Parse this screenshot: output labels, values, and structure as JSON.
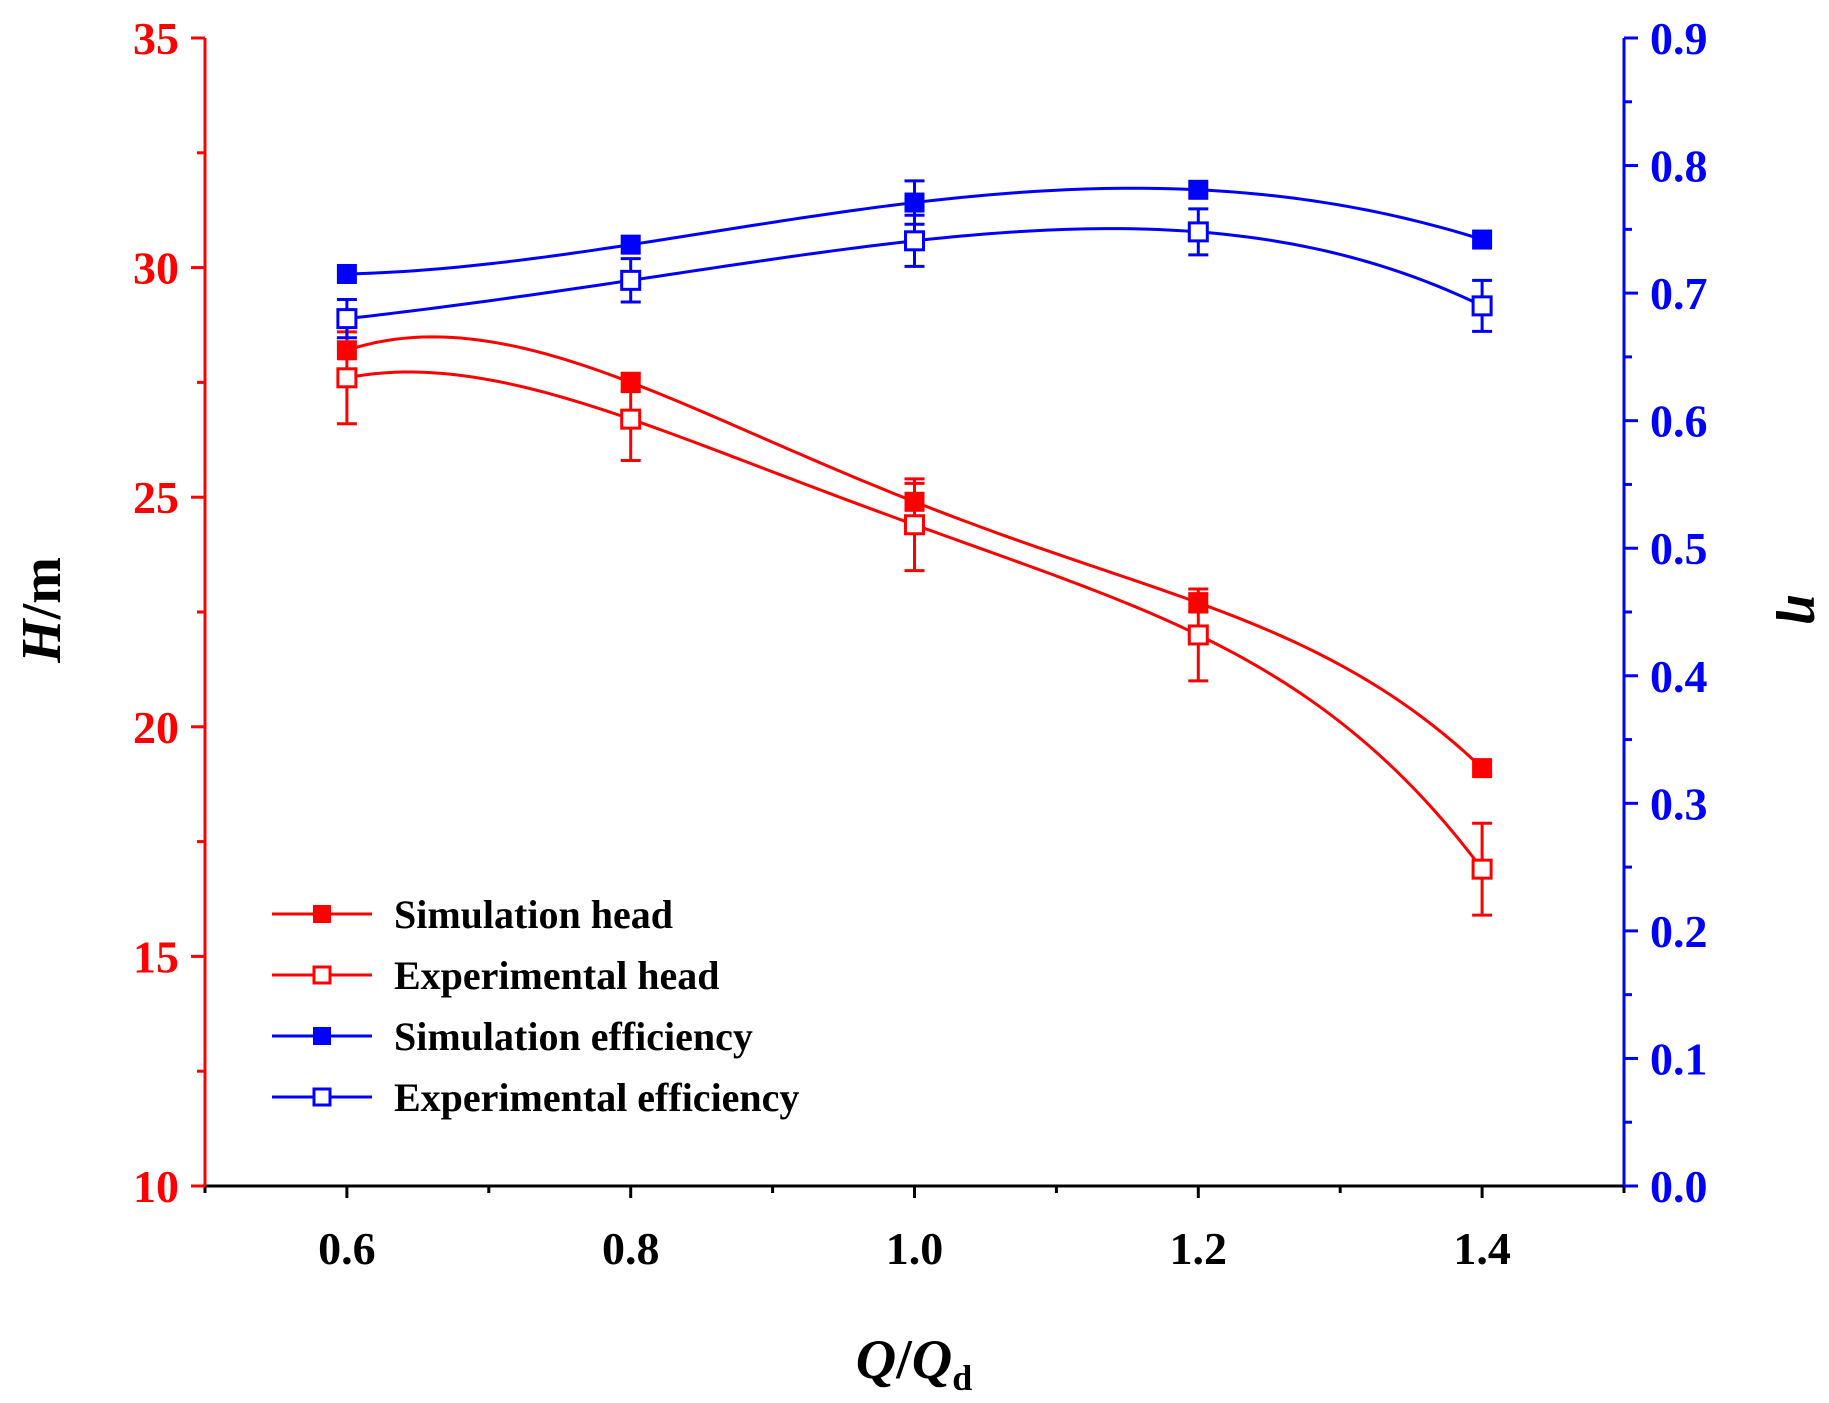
{
  "chart_data": {
    "type": "line",
    "x": [
      0.6,
      0.8,
      1.0,
      1.2,
      1.4
    ],
    "xlabel": {
      "main": "Q",
      "sep": "/",
      "main2": "Q",
      "sub": "d"
    },
    "xlim": [
      0.5,
      1.5
    ],
    "x_ticks": [
      "0.6",
      "0.8",
      "1.0",
      "1.2",
      "1.4"
    ],
    "ylabel_left": {
      "main": "H",
      "unit": "/m"
    },
    "ylim_left": [
      10,
      35
    ],
    "y_ticks_left": [
      "10",
      "15",
      "20",
      "25",
      "30",
      "35"
    ],
    "ylabel_right": "η",
    "ylim_right": [
      0.0,
      0.9
    ],
    "y_ticks_right": [
      "0.0",
      "0.1",
      "0.2",
      "0.3",
      "0.4",
      "0.5",
      "0.6",
      "0.7",
      "0.8",
      "0.9"
    ],
    "series": [
      {
        "name": "Simulation head",
        "axis": "left",
        "color": "#ff0000",
        "marker": "filled-square",
        "values": [
          28.2,
          27.5,
          24.9,
          22.7,
          19.1
        ],
        "error": [
          0,
          0.2,
          0.4,
          0.2,
          0
        ]
      },
      {
        "name": "Experimental head",
        "axis": "left",
        "color": "#ff0000",
        "marker": "open-square",
        "values": [
          27.6,
          26.7,
          24.4,
          22.0,
          16.9
        ],
        "error": [
          1.0,
          0.9,
          1.0,
          1.0,
          1.0
        ]
      },
      {
        "name": "Simulation efficiency",
        "axis": "right",
        "color": "#0000ff",
        "marker": "filled-square",
        "values": [
          0.715,
          0.738,
          0.771,
          0.781,
          0.742
        ],
        "error": [
          0,
          0,
          0.017,
          0,
          0
        ]
      },
      {
        "name": "Experimental efficiency",
        "axis": "right",
        "color": "#0000ff",
        "marker": "open-square",
        "values": [
          0.68,
          0.71,
          0.741,
          0.748,
          0.69
        ],
        "error": [
          0.015,
          0.017,
          0.02,
          0.018,
          0.02
        ]
      }
    ],
    "legend_position": "bottom-left",
    "colors": {
      "left_axis": "#ff0000",
      "right_axis": "#0000ff",
      "bottom_axis": "#000000"
    }
  }
}
